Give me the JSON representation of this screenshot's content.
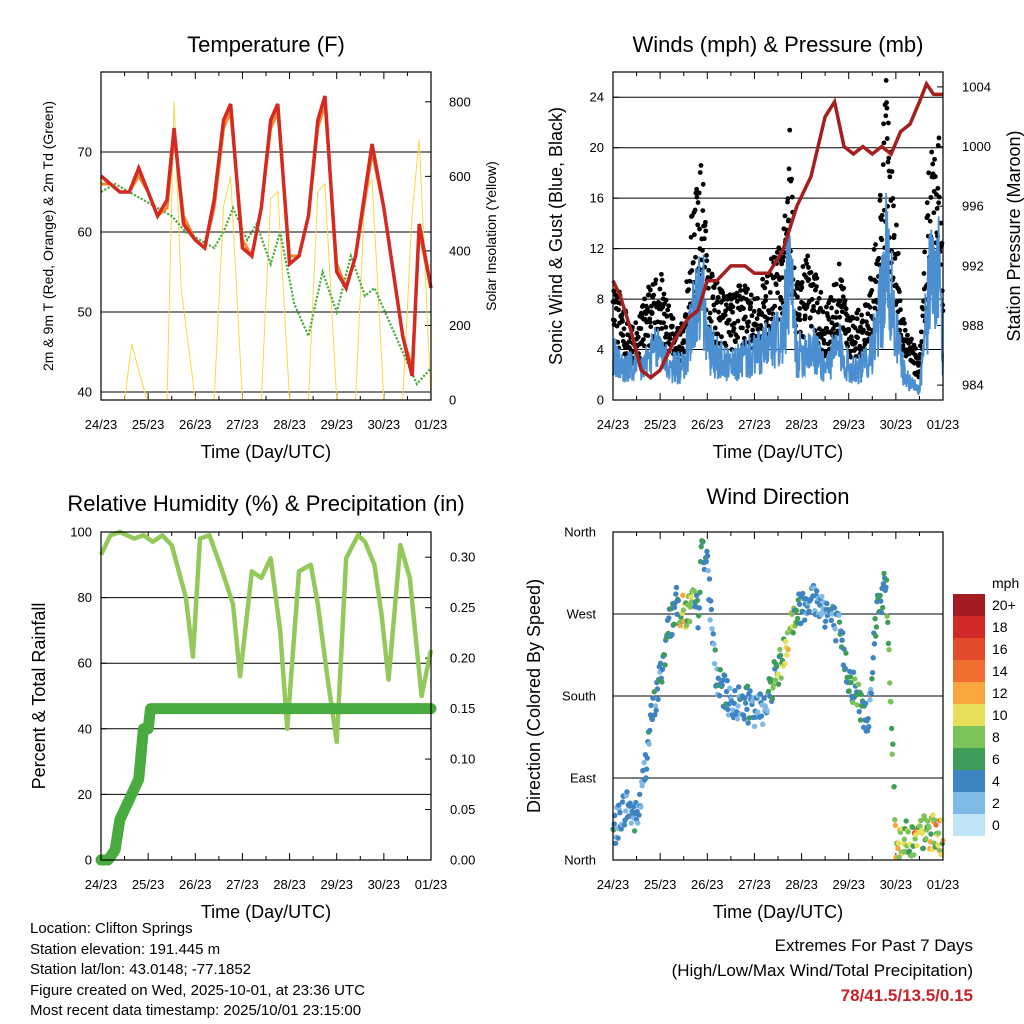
{
  "temperature_panel": {
    "title": "Temperature (F)",
    "ylabel_left": "2m & 9m T (Red, Orange) & 2m Td (Green)",
    "ylabel_right": "Solar Insolation (Yellow)",
    "xlabel": "Time (Day/UTC)"
  },
  "winds_panel": {
    "title": "Winds (mph) & Pressure (mb)",
    "ylabel_left": "Sonic Wind & Gust (Blue, Black)",
    "ylabel_right": "Station Pressure (Maroon)",
    "xlabel": "Time (Day/UTC)"
  },
  "humidity_panel": {
    "title": "Relative Humidity (%) & Precipitation (in)",
    "ylabel_left": "Percent & Total Rainfall",
    "xlabel": "Time (Day/UTC)"
  },
  "direction_panel": {
    "title": "Wind Direction",
    "ylabel_left": "Direction (Colored By Speed)",
    "xlabel": "Time (Day/UTC)"
  },
  "legend": {
    "title": "mph",
    "labels": [
      "20+",
      "18",
      "16",
      "14",
      "12",
      "10",
      "8",
      "6",
      "4",
      "2",
      "0"
    ],
    "colors": [
      "#a31c22",
      "#d12a26",
      "#e34a2c",
      "#f16f2e",
      "#f8a740",
      "#e8df58",
      "#7cc25a",
      "#3e9d58",
      "#3f84c2",
      "#7fbae6",
      "#bfe4f7"
    ]
  },
  "info": {
    "location": "Location: Clifton Springs",
    "elevation": "Station elevation: 191.445 m",
    "latlon": "Station lat/lon: 43.0148; -77.1852",
    "created": "Figure created on Wed, 2025-10-01, at 23:36 UTC",
    "recent": "Most recent data timestamp: 2025/10/01 23:15:00"
  },
  "extremes": {
    "line1": "Extremes For Past 7 Days",
    "line2": "(High/Low/Max Wind/Total Precipitation)",
    "values": "78/41.5/13.5/0.15"
  },
  "chart_data": [
    {
      "type": "line",
      "title": "Temperature (F)",
      "x_ticks": [
        "24/23",
        "25/23",
        "26/23",
        "27/23",
        "28/23",
        "29/23",
        "30/23",
        "01/23"
      ],
      "xlim": [
        0,
        7
      ],
      "ylim": [
        39,
        80
      ],
      "y_ticks": [
        40,
        50,
        60,
        70
      ],
      "y2lim": [
        0,
        880
      ],
      "y2_ticks": [
        0,
        200,
        400,
        600,
        800
      ],
      "series": [
        {
          "name": "2m T (Red)",
          "color": "#d42a22",
          "x": [
            0,
            0.2,
            0.4,
            0.6,
            0.8,
            1.0,
            1.2,
            1.4,
            1.55,
            1.75,
            2.0,
            2.2,
            2.4,
            2.6,
            2.75,
            3.0,
            3.2,
            3.4,
            3.6,
            3.75,
            4.0,
            4.2,
            4.4,
            4.6,
            4.75,
            5.0,
            5.2,
            5.4,
            5.6,
            5.75,
            6.0,
            6.2,
            6.4,
            6.6,
            6.75,
            7.0
          ],
          "values": [
            67,
            66,
            65,
            65,
            68,
            65,
            62,
            64,
            73,
            61,
            59,
            58,
            64,
            74,
            76,
            58,
            57,
            63,
            74,
            76,
            56,
            57,
            62,
            74,
            77,
            55,
            53,
            57,
            65,
            71,
            63,
            55,
            47,
            42,
            61,
            53
          ]
        },
        {
          "name": "9m T (Orange)",
          "color": "#ef8a2e",
          "x": [
            0,
            0.2,
            0.4,
            0.6,
            0.8,
            1.0,
            1.2,
            1.4,
            1.55,
            1.75,
            2.0,
            2.2,
            2.4,
            2.6,
            2.75,
            3.0,
            3.2,
            3.4,
            3.6,
            3.75,
            4.0,
            4.2,
            4.4,
            4.6,
            4.75,
            5.0,
            5.2,
            5.4,
            5.6,
            5.75,
            6.0,
            6.2,
            6.4,
            6.6,
            6.75,
            7.0
          ],
          "values": [
            66,
            66,
            65,
            65,
            67,
            65,
            62,
            63,
            72,
            62,
            59,
            58,
            63,
            73,
            75,
            59,
            57,
            63,
            73,
            75,
            57,
            57,
            62,
            73,
            76,
            56,
            53,
            57,
            64,
            70,
            63,
            55,
            47,
            43,
            60,
            53
          ]
        },
        {
          "name": "2m Td (Green)",
          "color": "#4aab3e",
          "x": [
            0,
            0.3,
            0.6,
            0.9,
            1.2,
            1.5,
            1.8,
            2.1,
            2.4,
            2.6,
            2.8,
            3.1,
            3.3,
            3.6,
            3.8,
            4.1,
            4.4,
            4.7,
            5.0,
            5.3,
            5.6,
            5.8,
            6.1,
            6.4,
            6.7,
            7.0
          ],
          "values": [
            65,
            66,
            65,
            64,
            63,
            62,
            60,
            59,
            58,
            60,
            63,
            59,
            61,
            56,
            60,
            51,
            47,
            55,
            50,
            57,
            52,
            53,
            49,
            45,
            41,
            43
          ]
        },
        {
          "name": "Solar Insolation (Yellow)",
          "color": "#f5d84a",
          "axis": "right",
          "x": [
            0.5,
            0.65,
            0.8,
            0.95,
            1.0,
            1.4,
            1.55,
            1.7,
            2.0,
            2.4,
            2.6,
            2.75,
            3.0,
            3.4,
            3.6,
            3.75,
            4.0,
            4.4,
            4.6,
            4.75,
            5.0,
            5.4,
            5.6,
            5.75,
            6.0,
            6.4,
            6.6,
            6.75,
            7.0
          ],
          "values": [
            0,
            150,
            80,
            10,
            0,
            0,
            800,
            300,
            0,
            0,
            520,
            600,
            0,
            0,
            540,
            560,
            0,
            0,
            560,
            580,
            0,
            0,
            560,
            590,
            0,
            0,
            500,
            700,
            0
          ]
        }
      ]
    },
    {
      "type": "line",
      "title": "Winds (mph) & Pressure (mb)",
      "x_ticks": [
        "24/23",
        "25/23",
        "26/23",
        "27/23",
        "28/23",
        "29/23",
        "30/23",
        "01/23"
      ],
      "xlim": [
        0,
        7
      ],
      "ylim": [
        0,
        26
      ],
      "y_ticks": [
        0,
        4,
        8,
        12,
        16,
        20,
        24
      ],
      "y2lim": [
        983,
        1005
      ],
      "y2_ticks": [
        984,
        988,
        992,
        996,
        1000,
        1004
      ],
      "series": [
        {
          "name": "Station Pressure (Maroon)",
          "color": "#a3201f",
          "axis": "right",
          "x": [
            0,
            0.15,
            0.35,
            0.6,
            0.8,
            1.0,
            1.3,
            1.6,
            1.8,
            2.0,
            2.2,
            2.5,
            2.8,
            3.0,
            3.3,
            3.6,
            3.9,
            4.2,
            4.5,
            4.7,
            4.9,
            5.1,
            5.3,
            5.5,
            5.7,
            5.9,
            6.1,
            6.3,
            6.5,
            6.65,
            6.8,
            7.0
          ],
          "values": [
            991,
            990,
            988,
            985,
            984.5,
            985,
            987,
            988.5,
            989,
            991,
            991,
            992,
            992,
            991.5,
            991.5,
            993,
            996,
            998,
            1002,
            1003,
            1000,
            999.5,
            1000,
            999.5,
            1000,
            999.5,
            1001,
            1001.5,
            1003,
            1004.2,
            1003.5,
            1003.5
          ]
        },
        {
          "name": "Gust (Black)",
          "color": "#000000",
          "x": [
            0,
            0.2,
            0.4,
            0.6,
            0.8,
            1.0,
            1.2,
            1.5,
            1.7,
            1.9,
            2.0,
            2.2,
            2.5,
            2.8,
            3.0,
            3.3,
            3.6,
            3.75,
            3.9,
            4.2,
            4.5,
            4.8,
            5.0,
            5.3,
            5.6,
            5.8,
            6.0,
            6.2,
            6.5,
            6.7,
            6.9,
            7.0
          ],
          "values": [
            8,
            7,
            5,
            6,
            8,
            9,
            6,
            5,
            14,
            16,
            9,
            8,
            7,
            8,
            7,
            9,
            11,
            18,
            8,
            10,
            6,
            9,
            6,
            6,
            11,
            22,
            12,
            5,
            3,
            16,
            21,
            8
          ]
        },
        {
          "name": "Sonic Wind (Blue)",
          "color": "#4b8fd0",
          "x": [
            0,
            0.2,
            0.4,
            0.6,
            0.8,
            1.0,
            1.2,
            1.5,
            1.7,
            1.9,
            2.0,
            2.2,
            2.5,
            2.8,
            3.0,
            3.3,
            3.6,
            3.75,
            3.9,
            4.2,
            4.5,
            4.8,
            5.0,
            5.3,
            5.6,
            5.8,
            6.0,
            6.2,
            6.5,
            6.7,
            6.9,
            7.0
          ],
          "values": [
            4,
            3,
            3,
            3,
            4,
            5,
            3,
            3,
            8,
            10,
            5,
            4,
            3,
            4,
            4,
            5,
            6,
            12,
            4,
            5,
            3,
            5,
            3,
            3,
            6,
            13,
            6,
            2,
            1,
            10,
            12,
            4
          ]
        }
      ]
    },
    {
      "type": "line",
      "title": "Relative Humidity (%) & Precipitation (in)",
      "x_ticks": [
        "24/23",
        "25/23",
        "26/23",
        "27/23",
        "28/23",
        "29/23",
        "30/23",
        "01/23"
      ],
      "xlim": [
        0,
        7
      ],
      "ylim": [
        0,
        100
      ],
      "y_ticks": [
        0,
        20,
        40,
        60,
        80,
        100
      ],
      "y2lim": [
        0,
        0.325
      ],
      "y2_ticks": [
        0.0,
        0.05,
        0.1,
        0.15,
        0.2,
        0.25,
        0.3
      ],
      "series": [
        {
          "name": "Relative Humidity",
          "color": "#93c95a",
          "x": [
            0,
            0.2,
            0.4,
            0.7,
            0.9,
            1.1,
            1.3,
            1.5,
            1.8,
            1.95,
            2.1,
            2.3,
            2.55,
            2.8,
            2.95,
            3.2,
            3.4,
            3.6,
            3.8,
            3.95,
            4.2,
            4.45,
            4.6,
            4.8,
            5.0,
            5.2,
            5.45,
            5.6,
            5.8,
            5.95,
            6.1,
            6.35,
            6.55,
            6.8,
            7.0
          ],
          "values": [
            93,
            99,
            100,
            98,
            99,
            97,
            99,
            96,
            80,
            62,
            98,
            99,
            89,
            78,
            56,
            88,
            86,
            92,
            70,
            40,
            88,
            90,
            78,
            56,
            36,
            92,
            99,
            97,
            90,
            75,
            55,
            96,
            86,
            50,
            64
          ]
        },
        {
          "name": "Total Precipitation",
          "color": "#49ab3f",
          "axis": "right",
          "x": [
            0,
            0.15,
            0.3,
            0.4,
            0.5,
            0.6,
            0.7,
            0.8,
            0.9,
            1.0,
            1.05,
            7.0
          ],
          "values": [
            0,
            0,
            0.01,
            0.04,
            0.05,
            0.06,
            0.07,
            0.08,
            0.13,
            0.13,
            0.15,
            0.15
          ]
        }
      ]
    },
    {
      "type": "scatter",
      "title": "Wind Direction",
      "x_ticks": [
        "24/23",
        "25/23",
        "26/23",
        "27/23",
        "28/23",
        "29/23",
        "30/23",
        "01/23"
      ],
      "xlim": [
        0,
        7
      ],
      "y_ticks": [
        "North",
        "East",
        "South",
        "West",
        "North"
      ],
      "ylim": [
        0,
        360
      ],
      "series": [
        {
          "name": "Direction",
          "x": [
            0,
            0.1,
            0.2,
            0.3,
            0.4,
            0.5,
            0.6,
            0.8,
            1.0,
            1.1,
            1.2,
            1.35,
            1.5,
            1.6,
            1.7,
            1.8,
            1.9,
            2.0,
            2.2,
            2.4,
            2.6,
            2.8,
            3.0,
            3.2,
            3.3,
            3.4,
            3.6,
            3.75,
            3.9,
            4.0,
            4.2,
            4.4,
            4.6,
            4.8,
            5.0,
            5.2,
            5.4,
            5.6,
            5.8,
            6.0,
            6.2,
            6.4,
            6.6,
            6.8,
            7.0
          ],
          "values": [
            30,
            40,
            55,
            60,
            50,
            45,
            70,
            150,
            200,
            230,
            260,
            280,
            270,
            275,
            280,
            270,
            350,
            320,
            195,
            180,
            170,
            175,
            160,
            170,
            180,
            200,
            220,
            260,
            270,
            280,
            290,
            280,
            270,
            250,
            200,
            180,
            150,
            280,
            300,
            20,
            25,
            20,
            30,
            30,
            25
          ],
          "speeds": [
            4,
            3,
            4,
            3,
            4,
            4,
            3,
            4,
            4,
            5,
            5,
            6,
            10,
            8,
            7,
            5,
            6,
            3,
            4,
            4,
            3,
            5,
            3,
            3,
            4,
            6,
            8,
            10,
            5,
            4,
            4,
            3,
            4,
            4,
            5,
            6,
            4,
            4,
            5,
            9,
            8,
            11,
            6,
            11,
            9
          ]
        }
      ]
    }
  ]
}
